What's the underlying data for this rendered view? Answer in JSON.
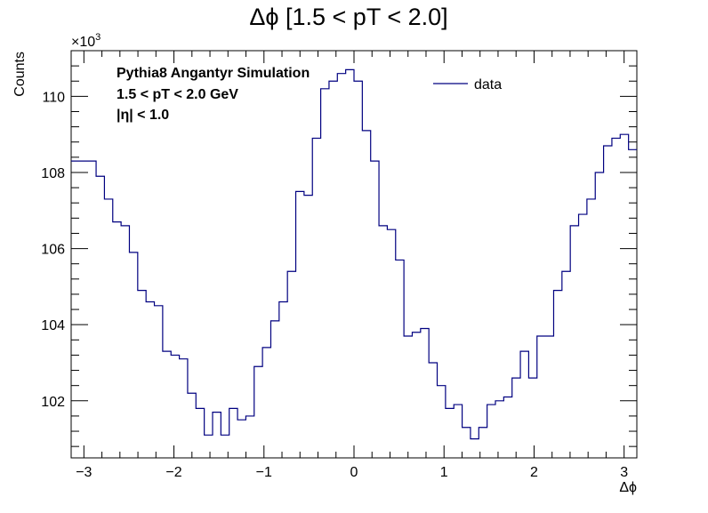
{
  "chart_data": {
    "type": "histogram",
    "title": "Δϕ [1.5 < pT < 2.0]",
    "xlabel": "Δϕ",
    "ylabel": "Counts",
    "y_multiplier": "×10",
    "y_multiplier_exp": "3",
    "xlim": [
      -3.1416,
      3.1416
    ],
    "ylim": [
      100.5,
      111.2
    ],
    "x_ticks": [
      -3,
      -2,
      -1,
      0,
      1,
      2,
      3
    ],
    "x_tick_labels": [
      "−3",
      "−2",
      "−1",
      "0",
      "1",
      "2",
      "3"
    ],
    "y_ticks": [
      102,
      104,
      106,
      108,
      110
    ],
    "y_tick_labels": [
      "102",
      "104",
      "106",
      "108",
      "110"
    ],
    "grid": false,
    "legend": {
      "position": "top-right",
      "entries": [
        "data"
      ]
    },
    "annotations": [
      "Pythia8 Angantyr Simulation",
      "1.5 < pT < 2.0 GeV",
      "|η| < 1.0"
    ],
    "bin_edge_start": -3.1416,
    "bin_edge_end": 3.1416,
    "series": [
      {
        "name": "data",
        "color": "#000080",
        "values": [
          108.3,
          108.3,
          108.3,
          107.9,
          107.3,
          106.7,
          106.6,
          105.9,
          104.9,
          104.6,
          104.5,
          103.3,
          103.2,
          103.1,
          102.2,
          101.8,
          101.1,
          101.7,
          101.1,
          101.8,
          101.5,
          101.6,
          102.9,
          103.4,
          104.1,
          104.6,
          105.4,
          107.5,
          107.4,
          108.9,
          110.2,
          110.4,
          110.6,
          110.7,
          110.4,
          109.1,
          108.3,
          106.6,
          106.5,
          105.7,
          103.7,
          103.8,
          103.9,
          103.0,
          102.4,
          101.8,
          101.9,
          101.3,
          101.0,
          101.3,
          101.9,
          102.0,
          102.1,
          102.6,
          103.3,
          102.6,
          103.7,
          103.7,
          104.9,
          105.4,
          106.6,
          106.9,
          107.3,
          108.0,
          108.7,
          108.9,
          109.0,
          108.6
        ]
      }
    ]
  }
}
